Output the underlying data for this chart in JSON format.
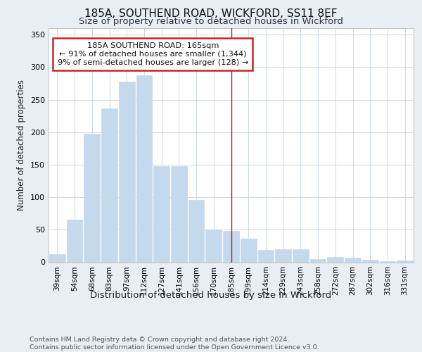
{
  "title1": "185A, SOUTHEND ROAD, WICKFORD, SS11 8EF",
  "title2": "Size of property relative to detached houses in Wickford",
  "xlabel": "Distribution of detached houses by size in Wickford",
  "ylabel": "Number of detached properties",
  "categories": [
    "39sqm",
    "54sqm",
    "68sqm",
    "83sqm",
    "97sqm",
    "112sqm",
    "127sqm",
    "141sqm",
    "156sqm",
    "170sqm",
    "185sqm",
    "199sqm",
    "214sqm",
    "229sqm",
    "243sqm",
    "258sqm",
    "272sqm",
    "287sqm",
    "302sqm",
    "316sqm",
    "331sqm"
  ],
  "values": [
    12,
    65,
    198,
    237,
    278,
    288,
    148,
    148,
    96,
    50,
    48,
    36,
    19,
    20,
    20,
    5,
    8,
    7,
    4,
    2,
    3
  ],
  "bar_color": "#c5d9ed",
  "bar_edge_color": "#c5d9ed",
  "vline_x": 10,
  "vline_color": "#aa2222",
  "annotation_line1": "185A SOUTHEND ROAD: 165sqm",
  "annotation_line2": "← 91% of detached houses are smaller (1,344)",
  "annotation_line3": "9% of semi-detached houses are larger (128) →",
  "annotation_box_color": "#ffffff",
  "annotation_box_edge": "#cc2222",
  "footer": "Contains HM Land Registry data © Crown copyright and database right 2024.\nContains public sector information licensed under the Open Government Licence v3.0.",
  "ylim": [
    0,
    360
  ],
  "yticks": [
    0,
    50,
    100,
    150,
    200,
    250,
    300,
    350
  ],
  "bg_color": "#e8eef4",
  "plot_bg_color": "#ffffff",
  "grid_color": "#c8d4e0",
  "title1_fontsize": 11,
  "title2_fontsize": 9.5
}
